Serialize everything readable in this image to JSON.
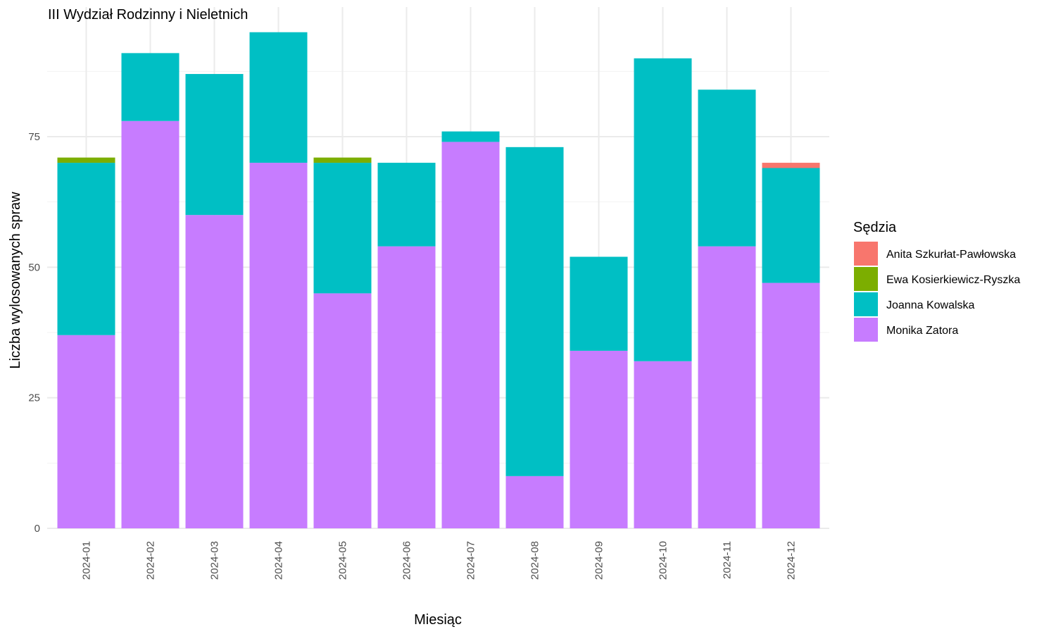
{
  "chart_data": {
    "type": "bar",
    "stacked": true,
    "title": "III Wydział Rodzinny i Nieletnich",
    "xlabel": "Miesiąc",
    "ylabel": "Liczba wylosowanych spraw",
    "ylim": [
      0,
      100
    ],
    "yticks": [
      0,
      25,
      50,
      75
    ],
    "grid": true,
    "legend_title": "Sędzia",
    "legend_position": "right",
    "categories": [
      "2024-01",
      "2024-02",
      "2024-03",
      "2024-04",
      "2024-05",
      "2024-06",
      "2024-07",
      "2024-08",
      "2024-09",
      "2024-10",
      "2024-11",
      "2024-12"
    ],
    "series": [
      {
        "name": "Monika Zatora",
        "color": "#C77CFF",
        "values": [
          37,
          78,
          60,
          70,
          45,
          54,
          74,
          10,
          34,
          32,
          54,
          47
        ]
      },
      {
        "name": "Joanna Kowalska",
        "color": "#00BFC4",
        "values": [
          33,
          13,
          27,
          25,
          25,
          16,
          2,
          63,
          18,
          58,
          30,
          22
        ]
      },
      {
        "name": "Ewa Kosierkiewicz-Ryszka",
        "color": "#7CAE00",
        "values": [
          1,
          0,
          0,
          0,
          1,
          0,
          0,
          0,
          0,
          0,
          0,
          0
        ]
      },
      {
        "name": "Anita Szkurłat-Pawłowska",
        "color": "#F8766D",
        "values": [
          0,
          0,
          0,
          0,
          0,
          0,
          0,
          0,
          0,
          0,
          0,
          1
        ]
      }
    ],
    "legend_order": [
      "Anita Szkurłat-Pawłowska",
      "Ewa Kosierkiewicz-Ryszka",
      "Joanna Kowalska",
      "Monika Zatora"
    ]
  }
}
